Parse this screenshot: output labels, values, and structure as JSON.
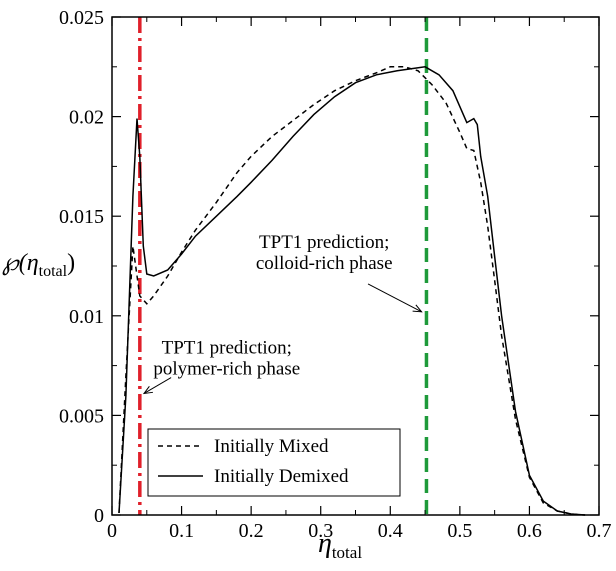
{
  "chart_data": {
    "type": "line",
    "xlabel": "η",
    "xlabel_sub": "total",
    "ylabel": "℘(η",
    "ylabel_sub": "total",
    "ylabel_close": ")",
    "xlim": [
      0,
      0.7
    ],
    "ylim": [
      0,
      0.025
    ],
    "x_ticks": [
      0,
      0.1,
      0.2,
      0.3,
      0.4,
      0.5,
      0.6,
      0.7
    ],
    "x_tick_labels": [
      "0",
      "0.1",
      "0.2",
      "0.3",
      "0.4",
      "0.5",
      "0.6",
      "0.7"
    ],
    "y_ticks": [
      0,
      0.005,
      0.01,
      0.015,
      0.02,
      0.025
    ],
    "y_tick_labels": [
      "0",
      "0.005",
      "0.01",
      "0.015",
      "0.02",
      "0.025"
    ],
    "grid": false,
    "legend_placement": "bottom-left",
    "series": [
      {
        "name": "Initially Mixed",
        "style": "dashed",
        "color": "#000000",
        "x": [
          0.01,
          0.02,
          0.03,
          0.04,
          0.05,
          0.06,
          0.08,
          0.1,
          0.12,
          0.15,
          0.18,
          0.2,
          0.23,
          0.26,
          0.29,
          0.32,
          0.35,
          0.38,
          0.4,
          0.42,
          0.44,
          0.46,
          0.48,
          0.5,
          0.51,
          0.52,
          0.53,
          0.54,
          0.55,
          0.56,
          0.58,
          0.6,
          0.62,
          0.64,
          0.66,
          0.68
        ],
        "y": [
          0.0001,
          0.007,
          0.0135,
          0.011,
          0.0106,
          0.011,
          0.012,
          0.0132,
          0.0143,
          0.0157,
          0.0172,
          0.018,
          0.019,
          0.0198,
          0.0206,
          0.0213,
          0.0218,
          0.0222,
          0.0225,
          0.0225,
          0.0223,
          0.0216,
          0.0207,
          0.0192,
          0.0184,
          0.0183,
          0.0167,
          0.0145,
          0.0118,
          0.009,
          0.0048,
          0.0019,
          0.0006,
          0.0002,
          5e-05,
          0.0
        ]
      },
      {
        "name": "Initially Demixed",
        "style": "solid",
        "color": "#000000",
        "x": [
          0.01,
          0.02,
          0.03,
          0.036,
          0.04,
          0.045,
          0.05,
          0.06,
          0.08,
          0.1,
          0.12,
          0.15,
          0.18,
          0.2,
          0.23,
          0.26,
          0.29,
          0.32,
          0.35,
          0.38,
          0.41,
          0.43,
          0.45,
          0.47,
          0.49,
          0.51,
          0.52,
          0.525,
          0.53,
          0.54,
          0.55,
          0.56,
          0.58,
          0.6,
          0.62,
          0.64,
          0.66,
          0.68
        ],
        "y": [
          0.0001,
          0.006,
          0.016,
          0.0199,
          0.018,
          0.0135,
          0.0121,
          0.012,
          0.0123,
          0.0131,
          0.014,
          0.015,
          0.016,
          0.0167,
          0.0178,
          0.019,
          0.0201,
          0.021,
          0.0217,
          0.0221,
          0.0223,
          0.0224,
          0.0225,
          0.0221,
          0.0213,
          0.0197,
          0.0199,
          0.0196,
          0.018,
          0.016,
          0.013,
          0.01,
          0.0052,
          0.002,
          0.0007,
          0.0002,
          5e-05,
          0.0
        ]
      }
    ],
    "vlines": [
      {
        "x": 0.04,
        "color": "#e0202a",
        "style": "dash-dot"
      },
      {
        "x": 0.452,
        "color": "#1e9a3a",
        "style": "dashed"
      }
    ],
    "annotations": [
      {
        "lines": [
          "TPT1 prediction;",
          "colloid-rich phase"
        ],
        "text_x": 0.305,
        "text_y": 0.0134,
        "arrow_from": [
          0.368,
          0.0116
        ],
        "arrow_to": [
          0.445,
          0.0102
        ]
      },
      {
        "lines": [
          "TPT1 prediction;",
          "polymer-rich phase"
        ],
        "text_x": 0.165,
        "text_y": 0.0081,
        "arrow_from": [
          0.085,
          0.0069
        ],
        "arrow_to": [
          0.046,
          0.0061
        ]
      }
    ]
  }
}
